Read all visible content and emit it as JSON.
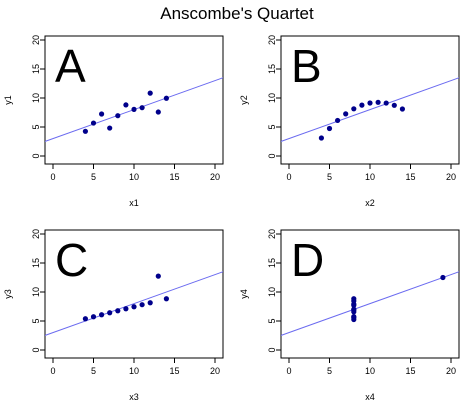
{
  "title": "Anscombe's Quartet",
  "chart_data": [
    {
      "type": "scatter",
      "panel_label": "A",
      "xlabel": "x1",
      "ylabel": "y1",
      "xlim": [
        0,
        20
      ],
      "ylim": [
        0,
        20
      ],
      "xticks": [
        0,
        5,
        10,
        15,
        20
      ],
      "yticks": [
        0,
        5,
        10,
        15,
        20
      ],
      "x": [
        10,
        8,
        13,
        9,
        11,
        14,
        6,
        4,
        12,
        7,
        5
      ],
      "y": [
        8.04,
        6.95,
        7.58,
        8.81,
        8.33,
        9.96,
        7.24,
        4.26,
        10.84,
        4.82,
        5.68
      ],
      "fit_line": {
        "intercept": 3.0,
        "slope": 0.5
      }
    },
    {
      "type": "scatter",
      "panel_label": "B",
      "xlabel": "x2",
      "ylabel": "y2",
      "xlim": [
        0,
        20
      ],
      "ylim": [
        0,
        20
      ],
      "xticks": [
        0,
        5,
        10,
        15,
        20
      ],
      "yticks": [
        0,
        5,
        10,
        15,
        20
      ],
      "x": [
        10,
        8,
        13,
        9,
        11,
        14,
        6,
        4,
        12,
        7,
        5
      ],
      "y": [
        9.14,
        8.14,
        8.74,
        8.77,
        9.26,
        8.1,
        6.13,
        3.1,
        9.13,
        7.26,
        4.74
      ],
      "fit_line": {
        "intercept": 3.0,
        "slope": 0.5
      }
    },
    {
      "type": "scatter",
      "panel_label": "C",
      "xlabel": "x3",
      "ylabel": "y3",
      "xlim": [
        0,
        20
      ],
      "ylim": [
        0,
        20
      ],
      "xticks": [
        0,
        5,
        10,
        15,
        20
      ],
      "yticks": [
        0,
        5,
        10,
        15,
        20
      ],
      "x": [
        10,
        8,
        13,
        9,
        11,
        14,
        6,
        4,
        12,
        7,
        5
      ],
      "y": [
        7.46,
        6.77,
        12.74,
        7.11,
        7.81,
        8.84,
        6.08,
        5.39,
        8.15,
        6.42,
        5.73
      ],
      "fit_line": {
        "intercept": 3.0,
        "slope": 0.5
      }
    },
    {
      "type": "scatter",
      "panel_label": "D",
      "xlabel": "x4",
      "ylabel": "y4",
      "xlim": [
        0,
        20
      ],
      "ylim": [
        0,
        20
      ],
      "xticks": [
        0,
        5,
        10,
        15,
        20
      ],
      "yticks": [
        0,
        5,
        10,
        15,
        20
      ],
      "x": [
        8,
        8,
        8,
        8,
        8,
        8,
        8,
        19,
        8,
        8,
        8
      ],
      "y": [
        6.58,
        5.76,
        7.71,
        8.84,
        8.47,
        7.04,
        5.25,
        12.5,
        5.56,
        7.91,
        6.89
      ],
      "fit_line": {
        "intercept": 3.0,
        "slope": 0.5
      }
    }
  ],
  "colors": {
    "points": "#00008b",
    "fit_line": "#6b6bf0",
    "axis": "#000000"
  }
}
